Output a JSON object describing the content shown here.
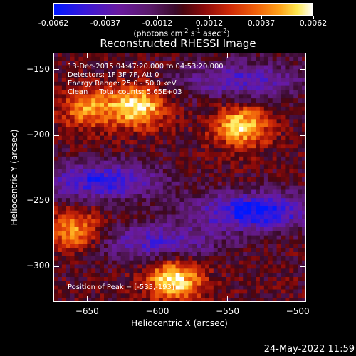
{
  "colorbar": {
    "ticks": [
      "-0.0062",
      "-0.0037",
      "-0.0012",
      "0.0012",
      "0.0037",
      "0.0062"
    ],
    "unit_prefix": "(photons cm",
    "unit_exp1": "-2",
    "unit_mid": " s",
    "unit_exp2": "-1",
    "unit_mid2": " asec",
    "unit_exp3": "-2",
    "unit_suffix": ")"
  },
  "chart_data": {
    "type": "heatmap",
    "title": "Reconstructed RHESSI Image",
    "xlabel": "Heliocentric X (arcsec)",
    "ylabel": "Heliocentric Y (arcsec)",
    "xlim": [
      -674,
      -494
    ],
    "ylim": [
      -327,
      -137
    ],
    "x_ticks": [
      -650,
      -600,
      -550,
      -500
    ],
    "y_ticks": [
      -150,
      -200,
      -250,
      -300
    ],
    "color_range": [
      -0.0062,
      0.0062
    ],
    "colormap": "blue-purple-red-yellow-white",
    "peak_position": [
      -533,
      -193
    ],
    "bright_regions": [
      {
        "x": -614,
        "y": -178,
        "level": 0.0062
      },
      {
        "x": -540,
        "y": -193,
        "level": 0.0055
      },
      {
        "x": -588,
        "y": -310,
        "level": 0.0062
      },
      {
        "x": -660,
        "y": -273,
        "level": 0.0045
      },
      {
        "x": -650,
        "y": -180,
        "level": 0.004
      }
    ],
    "dark_regions": [
      {
        "x": -640,
        "y": -235,
        "level": -0.005
      },
      {
        "x": -530,
        "y": -258,
        "level": -0.006
      },
      {
        "x": -540,
        "y": -158,
        "level": -0.004
      },
      {
        "x": -600,
        "y": -282,
        "level": -0.004
      }
    ]
  },
  "annotations": {
    "line1": "13-Dec-2015 04:47:20.000 to 04:53:20.000",
    "line2": "Detectors: 1F 3F 7F, Att 0",
    "line3": "Energy Range: 25.0 - 50.0 keV",
    "line4": "Clean     Total counts: 5.65E+03",
    "peak": "Position of Peak = [-533,-193]"
  },
  "timestamp": "24-May-2022 11:59"
}
